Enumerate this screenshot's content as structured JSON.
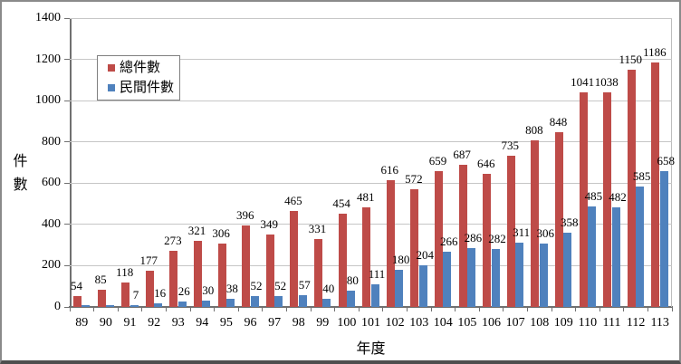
{
  "chart_data": {
    "type": "bar",
    "title": "",
    "xlabel": "年度",
    "ylabel": "件數",
    "categories": [
      "89",
      "90",
      "91",
      "92",
      "93",
      "94",
      "95",
      "96",
      "97",
      "98",
      "99",
      "100",
      "101",
      "102",
      "103",
      "104",
      "105",
      "106",
      "107",
      "108",
      "109",
      "110",
      "111",
      "112",
      "113"
    ],
    "series": [
      {
        "name": "總件數",
        "color": "#BE4B48",
        "values": [
          54,
          85,
          118,
          177,
          273,
          321,
          306,
          396,
          349,
          465,
          331,
          454,
          481,
          616,
          572,
          659,
          687,
          646,
          735,
          808,
          848,
          1041,
          1038,
          1150,
          1186
        ],
        "labels": [
          "54",
          "85",
          "118",
          "177",
          "273",
          "321",
          "306",
          "396",
          "349",
          "465",
          "331",
          "454",
          "481",
          "616",
          "572",
          "659",
          "687",
          "646",
          "735",
          "808",
          "848",
          "1041",
          "1038",
          "1150",
          "1186"
        ]
      },
      {
        "name": "民間件數",
        "color": "#4F81BD",
        "values": [
          8,
          8,
          7,
          16,
          26,
          30,
          38,
          52,
          52,
          57,
          40,
          80,
          111,
          180,
          204,
          266,
          286,
          282,
          311,
          306,
          358,
          485,
          482,
          585,
          658
        ],
        "labels": [
          "",
          "",
          "7",
          "16",
          "26",
          "30",
          "38",
          "52",
          "52",
          "57",
          "40",
          "80",
          "111",
          "180",
          "204",
          "266",
          "286",
          "282",
          "311",
          "306",
          "358",
          "485",
          "482",
          "585",
          "658"
        ]
      }
    ],
    "ylim": [
      0,
      1400
    ],
    "y_ticks": [
      0,
      200,
      400,
      600,
      800,
      1000,
      1200,
      1400
    ],
    "grid": true,
    "legend_position": "upper-left-inside",
    "colors": {
      "gridline": "#C6C6C6",
      "axis": "#707070",
      "label_text": "#000000"
    }
  }
}
